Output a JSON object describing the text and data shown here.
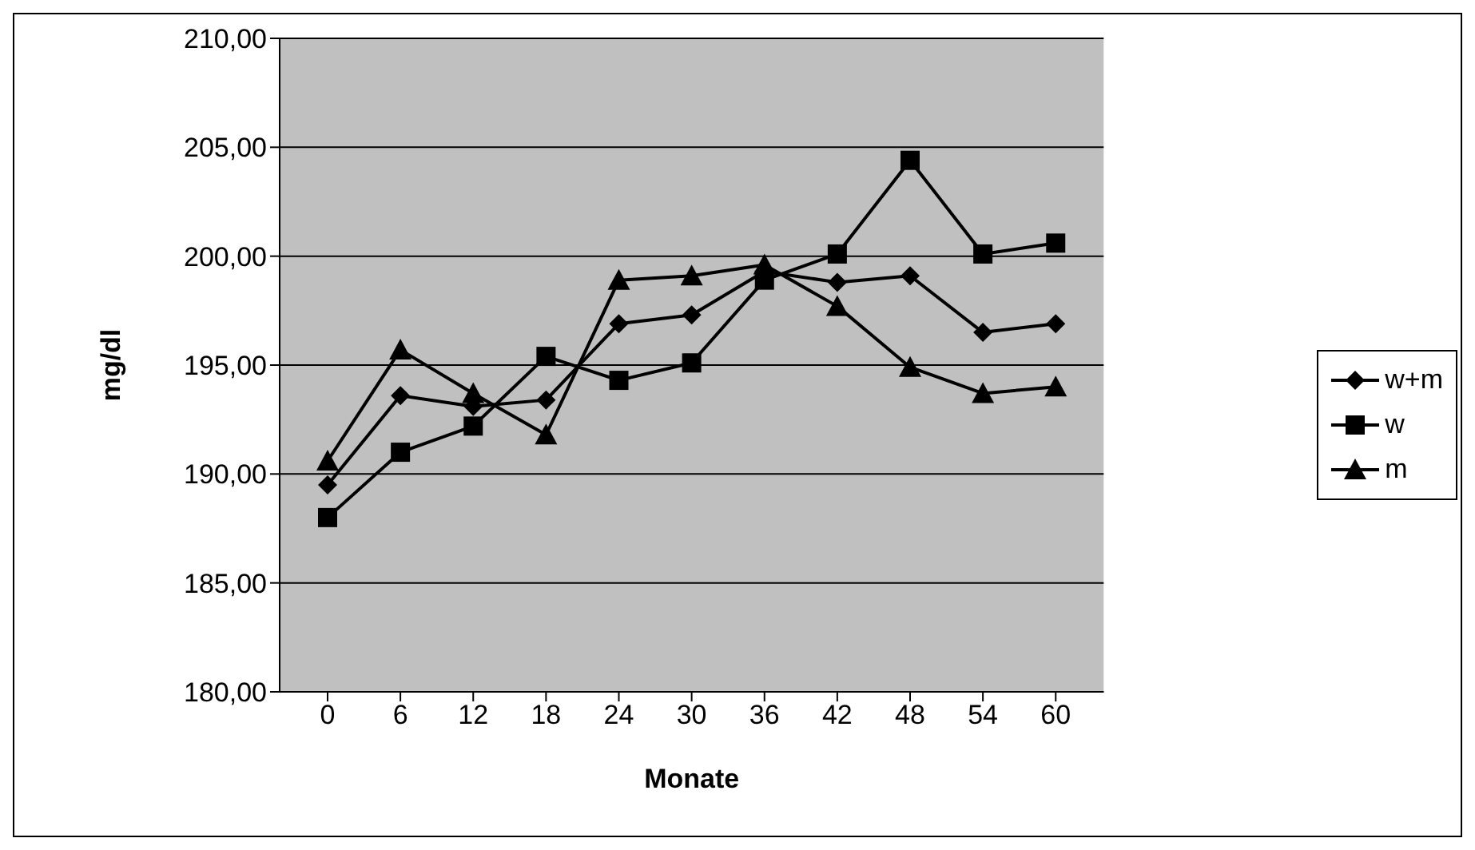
{
  "chart_data": {
    "type": "line",
    "xlabel": "Monate",
    "ylabel": "mg/dl",
    "categories": [
      "0",
      "6",
      "12",
      "18",
      "24",
      "30",
      "36",
      "42",
      "48",
      "54",
      "60"
    ],
    "series": [
      {
        "name": "w+m",
        "color": "#000000",
        "marker": "diamond",
        "values": [
          189.5,
          193.6,
          193.1,
          193.4,
          196.9,
          197.3,
          199.3,
          198.8,
          199.1,
          196.5,
          196.9
        ]
      },
      {
        "name": "w",
        "color": "#000000",
        "marker": "square",
        "values": [
          188.0,
          191.0,
          192.2,
          195.4,
          194.3,
          195.1,
          198.9,
          200.1,
          204.4,
          200.1,
          200.6
        ]
      },
      {
        "name": "m",
        "color": "#000000",
        "marker": "triangle",
        "values": [
          190.6,
          195.7,
          193.7,
          191.8,
          198.9,
          199.1,
          199.6,
          197.7,
          194.9,
          193.7,
          194.0
        ]
      }
    ],
    "ylim": [
      180,
      210
    ],
    "yticks": [
      {
        "value": 180,
        "label": "180,00"
      },
      {
        "value": 185,
        "label": "185,00"
      },
      {
        "value": 190,
        "label": "190,00"
      },
      {
        "value": 195,
        "label": "195,00"
      },
      {
        "value": 200,
        "label": "200,00"
      },
      {
        "value": 205,
        "label": "205,00"
      },
      {
        "value": 210,
        "label": "210,00"
      }
    ],
    "grid": "y",
    "legend": "right",
    "line_style": "solid"
  }
}
